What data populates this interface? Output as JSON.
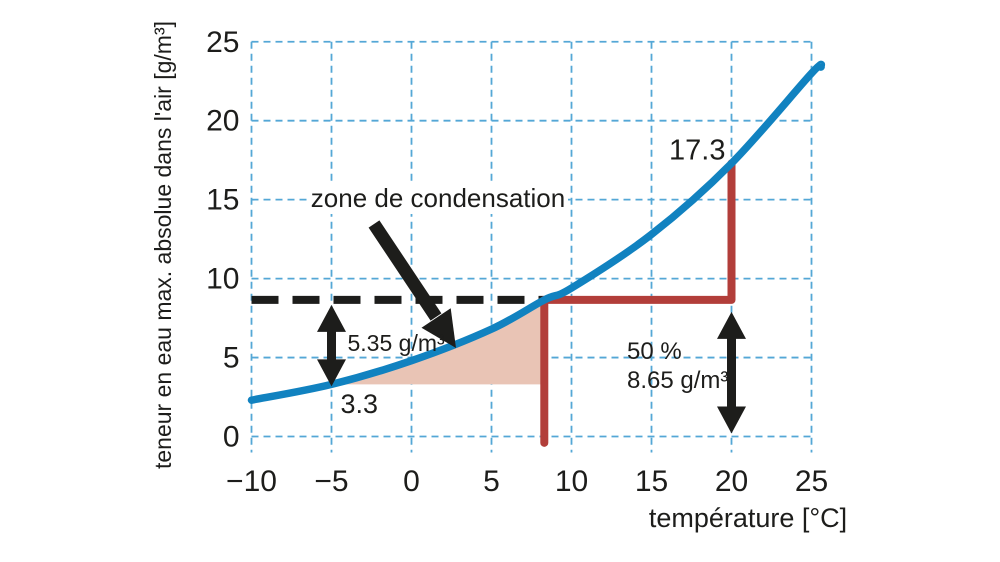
{
  "colors": {
    "ink": "#1d1d1b",
    "grid_blue": "#54a7d6",
    "curve_blue": "#1182c0",
    "red": "#b23e3a",
    "zone_fill": "#e9c4b5",
    "background": "#ffffff"
  },
  "labels": {
    "y_axis": "teneur en eau max. absolue dans l'air [g/m³]",
    "x_axis": "température [°C]",
    "zone": "zone de condensation",
    "saturation_at_20": "17.3",
    "saturation_at_minus5": "3.3",
    "condensation_amount": "5.35 g/m³",
    "relative_humidity": "50 %",
    "absolute_humidity": "8.65 g/m³"
  },
  "chart_data": {
    "type": "line",
    "title": "",
    "xlabel": "température [°C]",
    "ylabel": "teneur en eau max. absolue dans l'air [g/m³]",
    "xlim": [
      -10,
      25
    ],
    "ylim": [
      0,
      25
    ],
    "x_ticks": [
      -10,
      -5,
      0,
      5,
      10,
      15,
      20,
      25
    ],
    "y_ticks": [
      0,
      5,
      10,
      15,
      20,
      25
    ],
    "grid": "dashed light-blue grid every 5 units, both axes, short tick stubs below x-axis",
    "legend": "none",
    "series": [
      {
        "name": "courbe de saturation (teneur en eau maximale)",
        "points": [
          [
            -10,
            2.3
          ],
          [
            -5,
            3.3
          ],
          [
            0,
            4.8
          ],
          [
            5,
            6.8
          ],
          [
            8.3,
            8.65
          ],
          [
            10,
            9.4
          ],
          [
            15,
            12.8
          ],
          [
            20,
            17.3
          ],
          [
            25,
            23.0
          ],
          [
            25.6,
            23.4
          ]
        ]
      }
    ],
    "condensation_zone": {
      "x_from": -5,
      "x_to": 8.3,
      "y_base": 3.3,
      "label": "zone de condensation"
    },
    "dashed_guide_line": {
      "y": 8.65,
      "x_from": -10,
      "x_to": 8.3
    },
    "red_path_points": [
      [
        8.3,
        -0.4
      ],
      [
        8.3,
        8.65
      ],
      [
        20,
        8.65
      ],
      [
        20,
        17.3
      ]
    ],
    "double_arrows": [
      {
        "x": -5,
        "y_from": 3.3,
        "y_to": 8.65,
        "label": "5.35 g/m³"
      },
      {
        "x": 20,
        "y_from": 0,
        "y_to": 8.65,
        "label": "50 % / 8.65 g/m³"
      }
    ],
    "point_labels": [
      {
        "text": "17.3",
        "x": 20,
        "y": 17.3
      },
      {
        "text": "3.3",
        "x": -5,
        "y": 3.3
      }
    ]
  }
}
